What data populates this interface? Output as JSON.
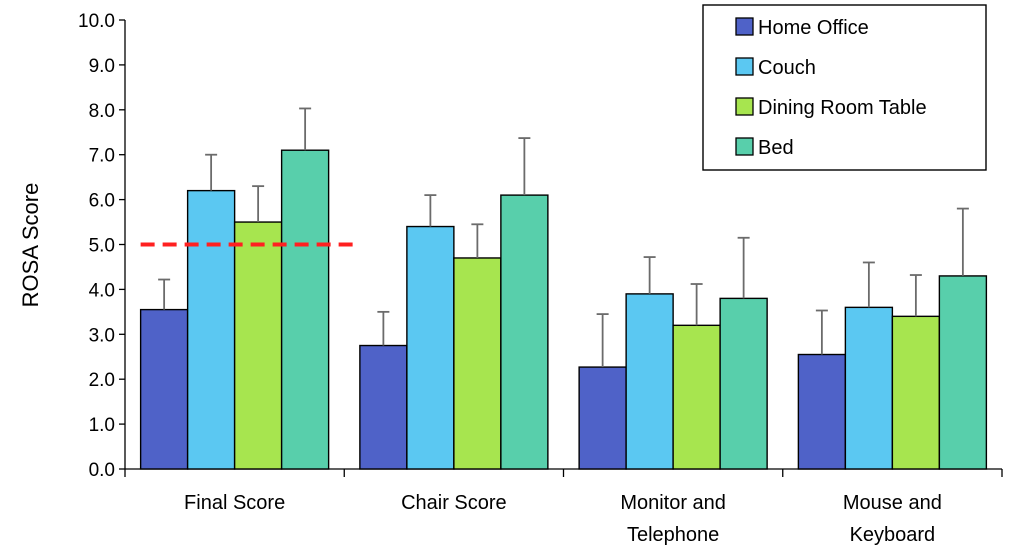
{
  "chart_data": {
    "type": "bar",
    "title": "",
    "xlabel": "",
    "ylabel": "ROSA Score",
    "ylim": [
      0,
      10
    ],
    "yticks": [
      "0.0",
      "1.0",
      "2.0",
      "3.0",
      "4.0",
      "5.0",
      "6.0",
      "7.0",
      "8.0",
      "9.0",
      "10.0"
    ],
    "grid": false,
    "legend_position": "top-right",
    "categories": [
      [
        "Final Score"
      ],
      [
        "Chair Score"
      ],
      [
        "Monitor and",
        "Telephone"
      ],
      [
        "Mouse and",
        "Keyboard"
      ]
    ],
    "series": [
      {
        "name": "Home Office",
        "color": "#4f62c8",
        "values": [
          3.55,
          2.75,
          2.27,
          2.55
        ],
        "error": [
          0.67,
          0.75,
          1.18,
          0.98
        ]
      },
      {
        "name": "Couch",
        "color": "#5bc8f2",
        "values": [
          6.2,
          5.4,
          3.9,
          3.6
        ],
        "error": [
          0.8,
          0.7,
          0.82,
          1.0
        ]
      },
      {
        "name": "Dining Room Table",
        "color": "#a7e54f",
        "values": [
          5.5,
          4.7,
          3.2,
          3.4
        ],
        "error": [
          0.8,
          0.75,
          0.92,
          0.92
        ]
      },
      {
        "name": "Bed",
        "color": "#58cfab",
        "values": [
          7.1,
          6.1,
          3.8,
          4.3
        ],
        "error": [
          0.93,
          1.27,
          1.35,
          1.5
        ]
      }
    ],
    "reference_line": {
      "value": 5.0,
      "color": "#ff2020",
      "style": "dashed",
      "category_index": 0
    }
  }
}
